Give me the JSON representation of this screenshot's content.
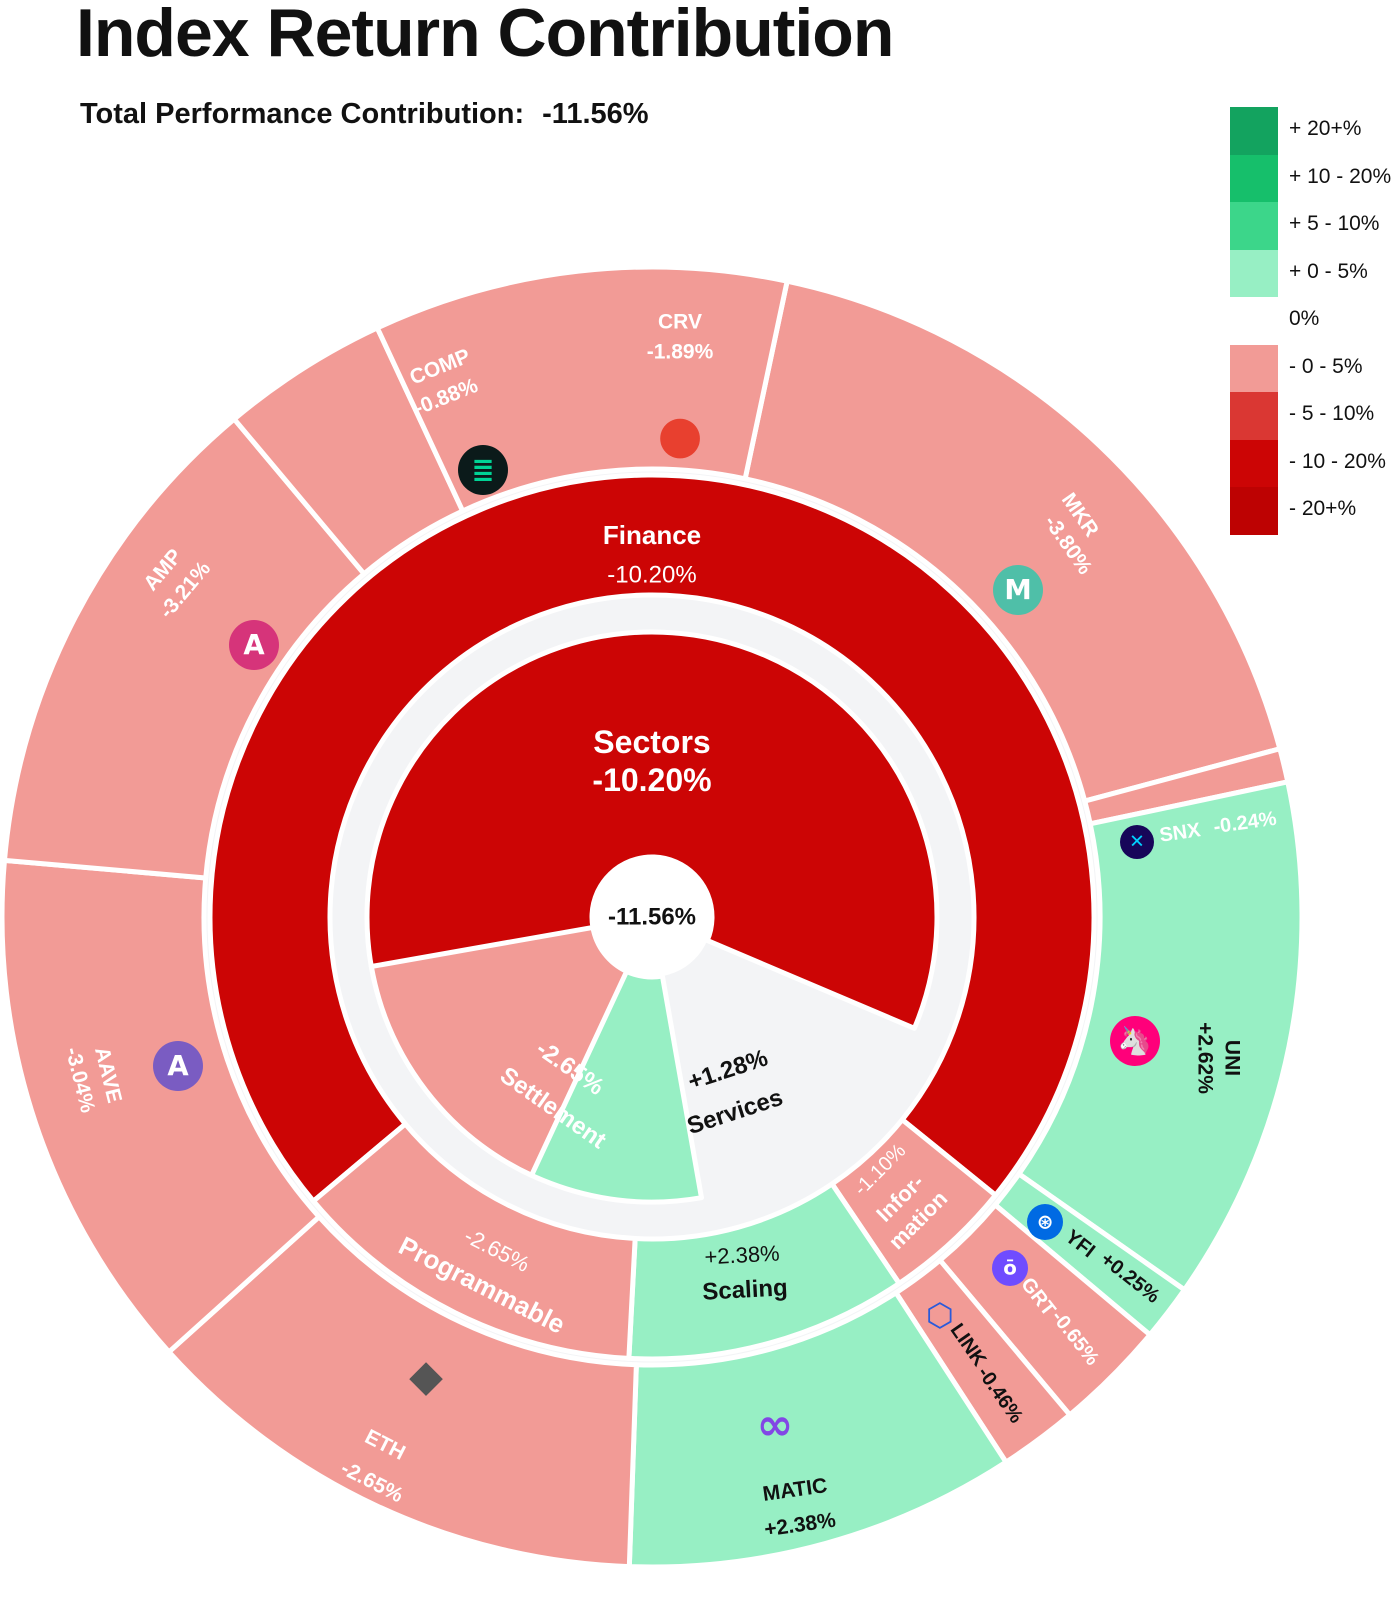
{
  "title": "Index Return Contribution",
  "summary": {
    "label": "Total Performance Contribution:",
    "value": "-11.56%"
  },
  "colors": {
    "pos_20_plus": "#13a35f",
    "pos_10_20": "#16bf6b",
    "pos_5_10": "#3cd68a",
    "pos_0_5": "#97efc4",
    "neg_0_5": "#f29b96",
    "neg_5_10": "#da3733",
    "neg_10_20": "#cc0505",
    "neg_20_plus": "#bd0202"
  },
  "legend": [
    {
      "label": "+ 20+%",
      "color": "#13a35f"
    },
    {
      "label": "+ 10 - 20%",
      "color": "#16bf6b"
    },
    {
      "label": "+ 5 - 10%",
      "color": "#3cd68a"
    },
    {
      "label": "+ 0 - 5%",
      "color": "#97efc4"
    },
    {
      "label": "0%",
      "color": "#ffffff"
    },
    {
      "label": "- 0 - 5%",
      "color": "#f29b96"
    },
    {
      "label": "- 5 - 10%",
      "color": "#da3733"
    },
    {
      "label": "- 10 - 20%",
      "color": "#cc0505"
    },
    {
      "label": "- 20+%",
      "color": "#bd0202"
    }
  ],
  "chart_data": {
    "type": "sunburst",
    "title": "Index Return Contribution",
    "root": {
      "label": "-11.56%",
      "value": -11.56
    },
    "sectors": [
      {
        "label": "Sectors",
        "value": -10.2,
        "value_label": "-10.20%",
        "start_deg": -155,
        "end_deg": 113
      },
      {
        "label": "Services",
        "value": 1.28,
        "value_label": "+1.28%",
        "start_deg": 170,
        "end_deg": 225
      },
      {
        "label": "Settlement",
        "value": -2.65,
        "value_label": "-2.65%",
        "start_deg": 205,
        "end_deg": 260
      }
    ],
    "subsectors": [
      {
        "label": "Finance",
        "value": -10.2,
        "value_label": "-10.20%",
        "start_deg": -130,
        "end_deg": 129
      },
      {
        "label": "Information",
        "label_lines": [
          "Infor-",
          "mation"
        ],
        "value": -1.1,
        "value_label": "-1.10%",
        "start_deg": 129,
        "end_deg": 146
      },
      {
        "label": "Scaling",
        "value": 2.38,
        "value_label": "+2.38%",
        "start_deg": 146,
        "end_deg": 183
      },
      {
        "label": "Programmable",
        "value": -2.65,
        "value_label": "-2.65%",
        "start_deg": 183,
        "end_deg": 230
      }
    ],
    "assets": [
      {
        "name": "MKR",
        "value": -3.8,
        "value_label": "-3.80%",
        "sector": "Finance",
        "icon": "mkr-icon",
        "start_deg": 12,
        "end_deg": 75
      },
      {
        "name": "SNX",
        "value": -0.24,
        "value_label": "-0.24%",
        "sector": "Finance",
        "icon": "snx-icon",
        "start_deg": 75,
        "end_deg": 78
      },
      {
        "name": "UNI",
        "value": 2.62,
        "value_label": "+2.62%",
        "sector": "Finance",
        "icon": "uni-icon",
        "start_deg": 78,
        "end_deg": 125
      },
      {
        "name": "YFI",
        "value": 0.25,
        "value_label": "+0.25%",
        "sector": "Finance",
        "icon": "yfi-icon",
        "start_deg": 125,
        "end_deg": 130
      },
      {
        "name": "GRT",
        "value": -0.65,
        "value_label": "-0.65%",
        "sector": "Information",
        "icon": "grt-icon",
        "start_deg": 130,
        "end_deg": 140
      },
      {
        "name": "LINK",
        "value": -0.46,
        "value_label": "-0.46%",
        "sector": "Information",
        "icon": "link-icon",
        "start_deg": 140,
        "end_deg": 147
      },
      {
        "name": "MATIC",
        "value": 2.38,
        "value_label": "+2.38%",
        "sector": "Scaling",
        "icon": "matic-icon",
        "start_deg": 147,
        "end_deg": 182
      },
      {
        "name": "ETH",
        "value": -2.65,
        "value_label": "-2.65%",
        "sector": "Programmable",
        "icon": "eth-icon",
        "start_deg": 182,
        "end_deg": 228
      },
      {
        "name": "AAVE",
        "value": -3.04,
        "value_label": "-3.04%",
        "sector": "Finance",
        "icon": "aave-icon",
        "start_deg": 228,
        "end_deg": 275
      },
      {
        "name": "AMP",
        "value": -3.21,
        "value_label": "-3.21%",
        "sector": "Finance",
        "icon": "amp-icon",
        "start_deg": 275,
        "end_deg": 320
      },
      {
        "name": "COMP",
        "value": -0.88,
        "value_label": "-0.88%",
        "sector": "Finance",
        "icon": "comp-icon",
        "start_deg": 320,
        "end_deg": 335
      },
      {
        "name": "CRV",
        "value": -1.89,
        "value_label": "-1.89%",
        "sector": "Finance",
        "icon": "crv-icon",
        "start_deg": 335,
        "end_deg": 372
      }
    ]
  }
}
